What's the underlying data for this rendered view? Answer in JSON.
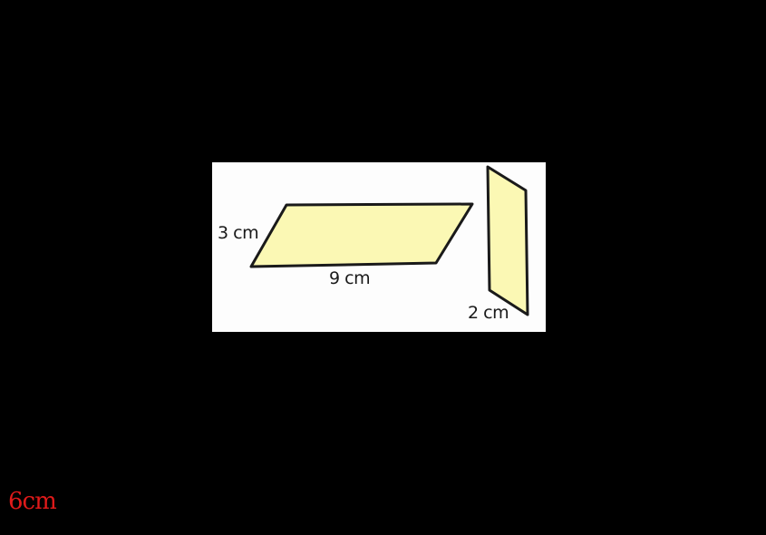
{
  "figure": {
    "shape_fill": "#fbf8b4",
    "stroke": "#1a1a1a",
    "labels": {
      "left_side": "3 cm",
      "bottom_side": "9 cm",
      "right_shape_side": "2 cm"
    }
  },
  "note": {
    "text": "6cm",
    "color": "#e01a1a"
  }
}
